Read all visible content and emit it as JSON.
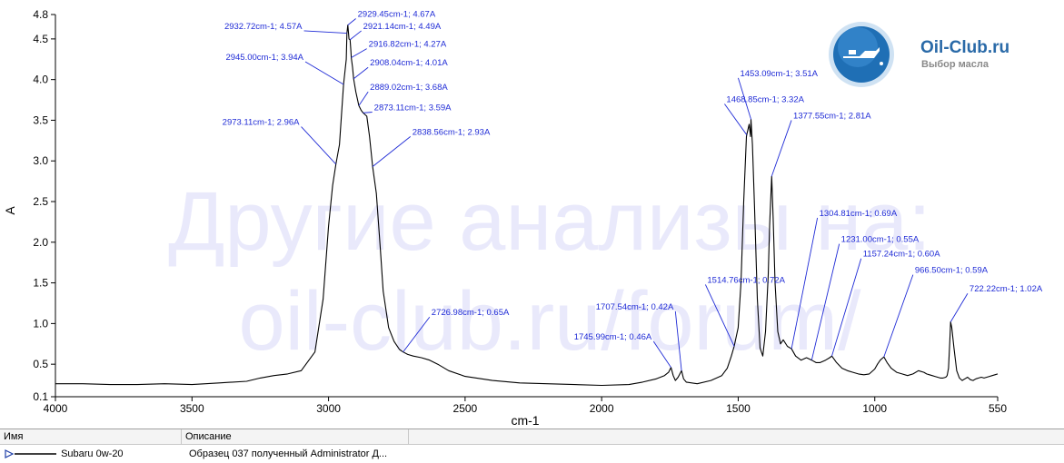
{
  "chart_data": {
    "type": "line",
    "xlabel": "cm-1",
    "ylabel": "A",
    "xlim": [
      4000,
      550
    ],
    "ylim": [
      0.1,
      4.8
    ],
    "x_ticks": [
      4000,
      3500,
      3000,
      2500,
      2000,
      1500,
      1000,
      550
    ],
    "y_ticks": [
      0.1,
      0.5,
      1.0,
      1.5,
      2.0,
      2.5,
      3.0,
      3.5,
      4.0,
      4.5,
      4.8
    ],
    "y_tick_labels": [
      "0.1",
      "0.5",
      "1.0",
      "1.5",
      "2.0",
      "2.5",
      "3.0",
      "3.5",
      "4.0",
      "4.5",
      "4.8"
    ],
    "series": [
      {
        "name": "Subaru 0w-20",
        "color": "#000000",
        "x": [
          4000,
          3900,
          3800,
          3700,
          3600,
          3500,
          3400,
          3300,
          3250,
          3200,
          3150,
          3100,
          3050,
          3020,
          3000,
          2985,
          2973.11,
          2960,
          2945,
          2935,
          2932.72,
          2929.45,
          2925,
          2921.14,
          2918,
          2916.82,
          2912,
          2908.04,
          2900,
          2889.02,
          2880,
          2873.11,
          2860,
          2850,
          2838.56,
          2825,
          2810,
          2800,
          2780,
          2760,
          2740,
          2726.98,
          2710,
          2690,
          2660,
          2630,
          2600,
          2560,
          2500,
          2400,
          2300,
          2200,
          2100,
          2000,
          1900,
          1850,
          1800,
          1770,
          1755,
          1745.99,
          1738,
          1730,
          1720,
          1707.54,
          1700,
          1690,
          1650,
          1600,
          1560,
          1540,
          1525,
          1514.76,
          1500,
          1490,
          1480,
          1470,
          1468.85,
          1460,
          1455,
          1453.09,
          1448,
          1440,
          1430,
          1420,
          1410,
          1400,
          1390,
          1385,
          1380,
          1377.55,
          1372,
          1365,
          1355,
          1345,
          1335,
          1320,
          1304.81,
          1290,
          1270,
          1250,
          1231.0,
          1215,
          1200,
          1180,
          1165,
          1157.24,
          1140,
          1120,
          1100,
          1080,
          1060,
          1040,
          1020,
          1000,
          990,
          980,
          970,
          966.5,
          955,
          940,
          920,
          900,
          880,
          860,
          840,
          820,
          810,
          800,
          790,
          780,
          770,
          760,
          750,
          740,
          735,
          730,
          725,
          722.22,
          718,
          710,
          700,
          690,
          680,
          670,
          660,
          650,
          640,
          630,
          620,
          610,
          600,
          590,
          580,
          570,
          560,
          550
        ],
        "y": [
          0.26,
          0.26,
          0.25,
          0.25,
          0.26,
          0.25,
          0.27,
          0.29,
          0.33,
          0.36,
          0.38,
          0.42,
          0.65,
          1.3,
          2.2,
          2.7,
          2.96,
          3.2,
          3.94,
          4.25,
          4.57,
          4.67,
          4.5,
          4.49,
          4.35,
          4.27,
          4.15,
          4.01,
          3.85,
          3.68,
          3.62,
          3.59,
          3.55,
          3.3,
          2.93,
          2.6,
          1.9,
          1.4,
          0.95,
          0.78,
          0.68,
          0.65,
          0.62,
          0.6,
          0.58,
          0.55,
          0.5,
          0.42,
          0.35,
          0.3,
          0.27,
          0.26,
          0.25,
          0.24,
          0.25,
          0.28,
          0.32,
          0.36,
          0.4,
          0.46,
          0.36,
          0.3,
          0.34,
          0.42,
          0.32,
          0.28,
          0.26,
          0.3,
          0.36,
          0.45,
          0.6,
          0.72,
          0.95,
          1.5,
          2.5,
          3.3,
          3.32,
          3.45,
          3.3,
          3.51,
          3.2,
          2.4,
          1.3,
          0.7,
          0.6,
          0.9,
          1.6,
          2.2,
          2.6,
          2.81,
          2.3,
          1.5,
          0.9,
          0.75,
          0.8,
          0.72,
          0.69,
          0.6,
          0.55,
          0.58,
          0.55,
          0.52,
          0.52,
          0.55,
          0.58,
          0.6,
          0.52,
          0.45,
          0.42,
          0.4,
          0.38,
          0.37,
          0.38,
          0.44,
          0.5,
          0.55,
          0.58,
          0.59,
          0.52,
          0.45,
          0.4,
          0.38,
          0.36,
          0.38,
          0.42,
          0.4,
          0.38,
          0.37,
          0.36,
          0.35,
          0.34,
          0.33,
          0.33,
          0.34,
          0.36,
          0.45,
          0.8,
          1.02,
          0.95,
          0.7,
          0.42,
          0.33,
          0.3,
          0.32,
          0.34,
          0.31,
          0.3,
          0.32,
          0.33,
          0.34,
          0.33,
          0.34,
          0.35,
          0.36,
          0.37,
          0.38
        ]
      }
    ],
    "annotations": [
      {
        "label": "2929.45cm-1; 4.67A",
        "x": 2929.45,
        "y": 4.67,
        "lx": 2900,
        "ly": 4.75,
        "anchor": "start"
      },
      {
        "label": "2932.72cm-1; 4.57A",
        "x": 2932.72,
        "y": 4.57,
        "lx": 3090,
        "ly": 4.6,
        "anchor": "end"
      },
      {
        "label": "2921.14cm-1; 4.49A",
        "x": 2921.14,
        "y": 4.49,
        "lx": 2880,
        "ly": 4.6,
        "anchor": "start"
      },
      {
        "label": "2916.82cm-1; 4.27A",
        "x": 2916.82,
        "y": 4.27,
        "lx": 2860,
        "ly": 4.38,
        "anchor": "start"
      },
      {
        "label": "2945.00cm-1; 3.94A",
        "x": 2945.0,
        "y": 3.94,
        "lx": 3085,
        "ly": 4.22,
        "anchor": "end"
      },
      {
        "label": "2908.04cm-1; 4.01A",
        "x": 2908.04,
        "y": 4.01,
        "lx": 2855,
        "ly": 4.15,
        "anchor": "start"
      },
      {
        "label": "2889.02cm-1; 3.68A",
        "x": 2889.02,
        "y": 3.68,
        "lx": 2855,
        "ly": 3.85,
        "anchor": "start"
      },
      {
        "label": "2873.11cm-1; 3.59A",
        "x": 2873.11,
        "y": 3.59,
        "lx": 2840,
        "ly": 3.6,
        "anchor": "start"
      },
      {
        "label": "2973.11cm-1; 2.96A",
        "x": 2973.11,
        "y": 2.96,
        "lx": 3100,
        "ly": 3.42,
        "anchor": "end"
      },
      {
        "label": "2838.56cm-1; 2.93A",
        "x": 2838.56,
        "y": 2.93,
        "lx": 2700,
        "ly": 3.3,
        "anchor": "start"
      },
      {
        "label": "2726.98cm-1; 0.65A",
        "x": 2726.98,
        "y": 0.65,
        "lx": 2630,
        "ly": 1.08,
        "anchor": "start"
      },
      {
        "label": "1453.09cm-1; 3.51A",
        "x": 1453.09,
        "y": 3.51,
        "lx": 1500,
        "ly": 4.02,
        "anchor": "start"
      },
      {
        "label": "1468.85cm-1; 3.32A",
        "x": 1468.85,
        "y": 3.32,
        "lx": 1550,
        "ly": 3.7,
        "anchor": "start"
      },
      {
        "label": "1377.55cm-1; 2.81A",
        "x": 1377.55,
        "y": 2.81,
        "lx": 1305,
        "ly": 3.5,
        "anchor": "start"
      },
      {
        "label": "1514.76cm-1; 0.72A",
        "x": 1514.76,
        "y": 0.72,
        "lx": 1620,
        "ly": 1.48,
        "anchor": "start"
      },
      {
        "label": "1304.81cm-1; 0.69A",
        "x": 1304.81,
        "y": 0.69,
        "lx": 1210,
        "ly": 2.3,
        "anchor": "start"
      },
      {
        "label": "1231.00cm-1; 0.55A",
        "x": 1231.0,
        "y": 0.55,
        "lx": 1130,
        "ly": 1.98,
        "anchor": "start"
      },
      {
        "label": "1157.24cm-1; 0.60A",
        "x": 1157.24,
        "y": 0.6,
        "lx": 1050,
        "ly": 1.8,
        "anchor": "start"
      },
      {
        "label": "966.50cm-1; 0.59A",
        "x": 966.5,
        "y": 0.59,
        "lx": 860,
        "ly": 1.6,
        "anchor": "start"
      },
      {
        "label": "722.22cm-1; 1.02A",
        "x": 722.22,
        "y": 1.02,
        "lx": 660,
        "ly": 1.37,
        "anchor": "start"
      },
      {
        "label": "1707.54cm-1; 0.42A",
        "x": 1707.54,
        "y": 0.42,
        "lx": 1730,
        "ly": 1.15,
        "anchor": "end"
      },
      {
        "label": "1745.99cm-1; 0.46A",
        "x": 1745.99,
        "y": 0.46,
        "lx": 1810,
        "ly": 0.78,
        "anchor": "end"
      }
    ]
  },
  "watermark": {
    "line1": "Другие анализы на:",
    "line2": "oil-club.ru/forum/"
  },
  "logo": {
    "title": "Oil-Club.ru",
    "subtitle": "Выбор масла",
    "icon": "oil-can-icon"
  },
  "legend_table": {
    "col_name_header": "Имя",
    "col_desc_header": "Описание",
    "rows": [
      {
        "name": "Subaru 0w-20",
        "description": "Образец 037 полученный Administrator Д..."
      }
    ]
  }
}
